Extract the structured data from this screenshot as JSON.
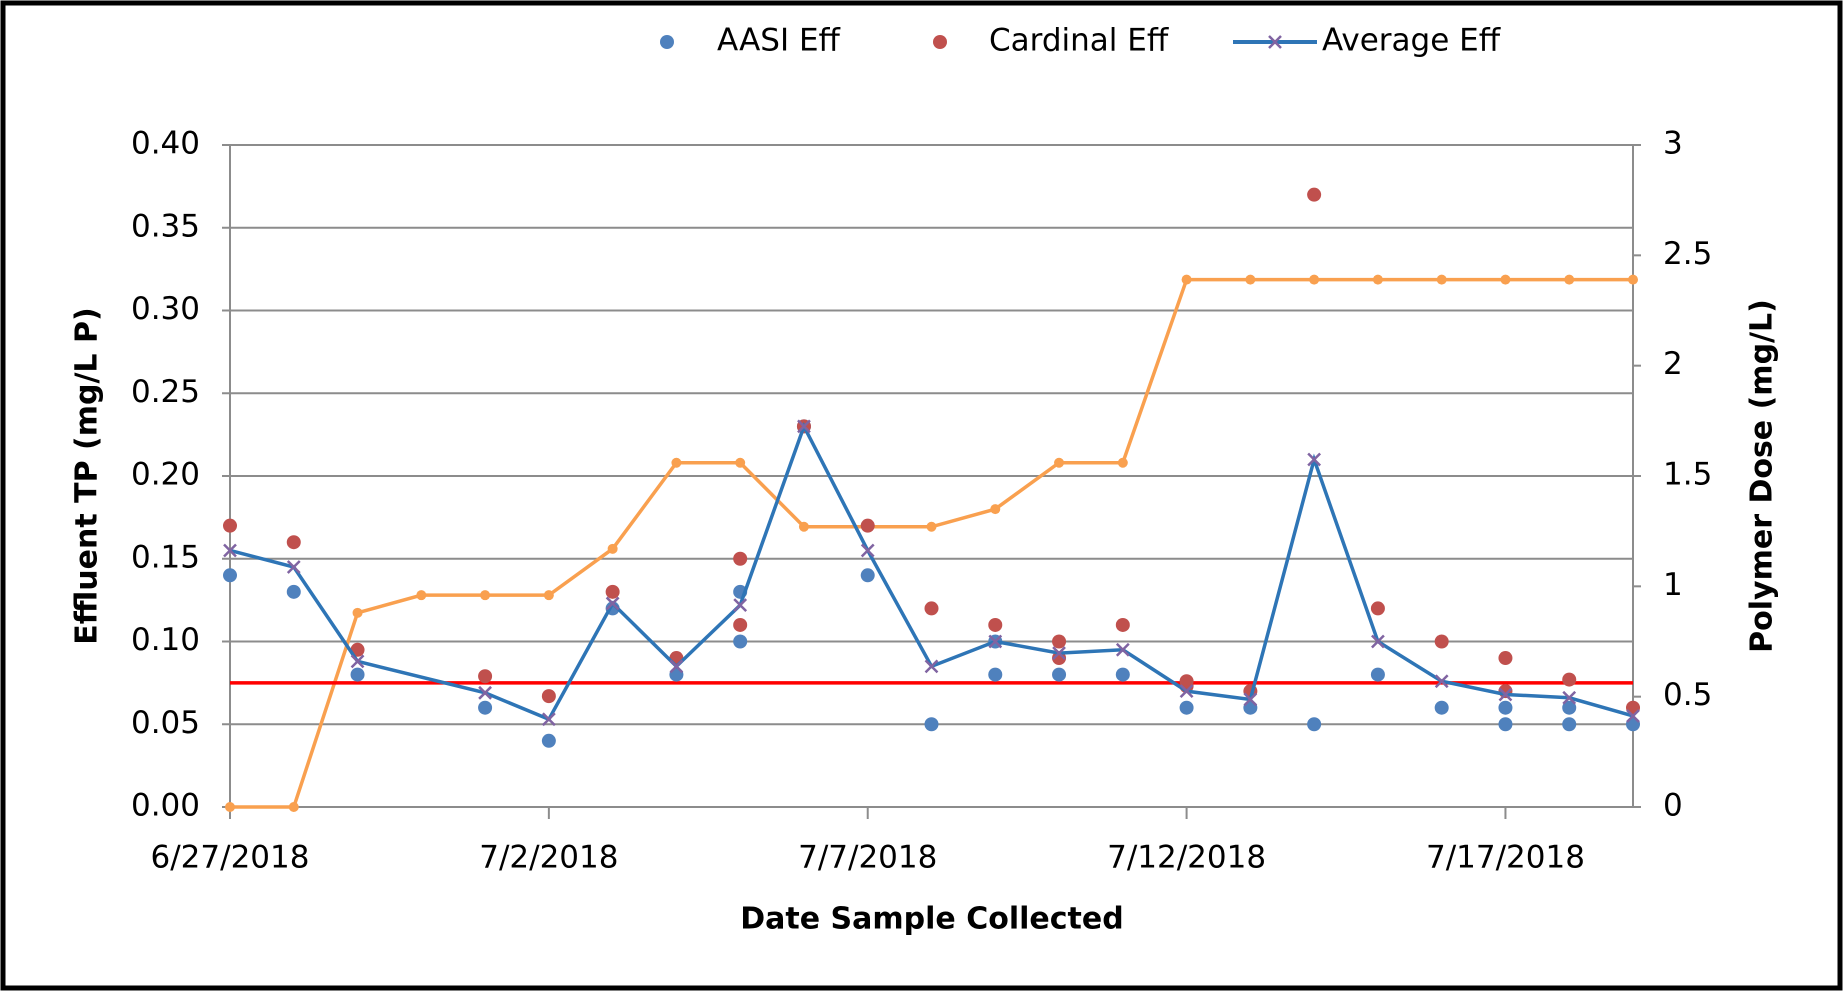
{
  "chart_data": {
    "type": "line",
    "xlabel": "Date Sample Collected",
    "ylabel": "Effluent TP (mg/L P)",
    "y2label": "Polymer Dose (mg/L)",
    "xlim": [
      "6/27/2018",
      "7/19/2018"
    ],
    "xticks": [
      "6/27/2018",
      "7/2/2018",
      "7/7/2018",
      "7/12/2018",
      "7/17/2018"
    ],
    "ylim": [
      0,
      0.4
    ],
    "yticks": [
      {
        "value": 0,
        "label": "0.00"
      },
      {
        "value": 0.05,
        "label": "0.05"
      },
      {
        "value": 0.1,
        "label": "0.10"
      },
      {
        "value": 0.15,
        "label": "0.15"
      },
      {
        "value": 0.2,
        "label": "0.20"
      },
      {
        "value": 0.25,
        "label": "0.25"
      },
      {
        "value": 0.3,
        "label": "0.30"
      },
      {
        "value": 0.35,
        "label": "0.35"
      },
      {
        "value": 0.4,
        "label": "0.40"
      }
    ],
    "y2lim": [
      0,
      3
    ],
    "y2ticks": [
      0,
      0.5,
      1,
      1.5,
      2,
      2.5,
      3
    ],
    "grid": true,
    "legend": "top",
    "reference_line": {
      "value": 0.075,
      "color": "#ff0000"
    },
    "series": [
      {
        "name": "AASI Eff",
        "type": "scatter",
        "color": "#4f81bd",
        "x": [
          "6/27/2018",
          "6/28/2018",
          "6/29/2018",
          "7/1/2018",
          "7/2/2018",
          "7/3/2018",
          "7/4/2018",
          "7/5/2018",
          "7/5/2018",
          "7/6/2018",
          "7/7/2018",
          "7/8/2018",
          "7/9/2018",
          "7/9/2018",
          "7/10/2018",
          "7/11/2018",
          "7/12/2018",
          "7/13/2018",
          "7/14/2018",
          "7/15/2018",
          "7/16/2018",
          "7/17/2018",
          "7/17/2018",
          "7/18/2018",
          "7/18/2018",
          "7/19/2018"
        ],
        "values": [
          0.14,
          0.13,
          0.08,
          0.06,
          0.04,
          0.12,
          0.08,
          0.13,
          0.1,
          0.23,
          0.14,
          0.05,
          0.08,
          0.1,
          0.08,
          0.08,
          0.06,
          0.06,
          0.05,
          0.08,
          0.06,
          0.05,
          0.06,
          0.05,
          0.06,
          0.05
        ]
      },
      {
        "name": "Cardinal Eff",
        "type": "scatter",
        "color": "#c0504d",
        "x": [
          "6/27/2018",
          "6/28/2018",
          "6/29/2018",
          "7/1/2018",
          "7/2/2018",
          "7/3/2018",
          "7/4/2018",
          "7/5/2018",
          "7/5/2018",
          "7/6/2018",
          "7/7/2018",
          "7/8/2018",
          "7/9/2018",
          "7/10/2018",
          "7/10/2018",
          "7/11/2018",
          "7/12/2018",
          "7/12/2018",
          "7/13/2018",
          "7/14/2018",
          "7/15/2018",
          "7/16/2018",
          "7/17/2018",
          "7/17/2018",
          "7/18/2018",
          "7/19/2018"
        ],
        "values": [
          0.17,
          0.16,
          0.095,
          0.079,
          0.067,
          0.13,
          0.09,
          0.15,
          0.11,
          0.23,
          0.17,
          0.12,
          0.11,
          0.1,
          0.09,
          0.11,
          0.076,
          0.073,
          0.07,
          0.37,
          0.12,
          0.1,
          0.09,
          0.07,
          0.077,
          0.06
        ]
      },
      {
        "name": "Average Eff",
        "type": "line",
        "color": "#2e75b6",
        "marker_color": "#8064a2",
        "x": [
          "6/27/2018",
          "6/28/2018",
          "6/29/2018",
          "7/1/2018",
          "7/2/2018",
          "7/3/2018",
          "7/4/2018",
          "7/5/2018",
          "7/6/2018",
          "7/7/2018",
          "7/8/2018",
          "7/9/2018",
          "7/10/2018",
          "7/11/2018",
          "7/12/2018",
          "7/13/2018",
          "7/14/2018",
          "7/15/2018",
          "7/16/2018",
          "7/17/2018",
          "7/18/2018",
          "7/19/2018"
        ],
        "values": [
          0.155,
          0.145,
          0.088,
          0.069,
          0.053,
          0.123,
          0.085,
          0.122,
          0.23,
          0.155,
          0.085,
          0.1,
          0.093,
          0.095,
          0.07,
          0.065,
          0.21,
          0.1,
          0.076,
          0.068,
          0.066,
          0.055
        ]
      },
      {
        "type": "line",
        "axis": "y2",
        "color": "#f9a04f",
        "marker_color": "#f9a04f",
        "x": [
          "6/27/2018",
          "6/28/2018",
          "6/29/2018",
          "6/30/2018",
          "7/1/2018",
          "7/2/2018",
          "7/3/2018",
          "7/4/2018",
          "7/5/2018",
          "7/6/2018",
          "7/7/2018",
          "7/8/2018",
          "7/9/2018",
          "7/10/2018",
          "7/11/2018",
          "7/12/2018",
          "7/13/2018",
          "7/14/2018",
          "7/15/2018",
          "7/16/2018",
          "7/17/2018",
          "7/18/2018",
          "7/19/2018"
        ],
        "values": [
          0,
          0,
          0.88,
          0.96,
          0.96,
          0.96,
          1.17,
          1.56,
          1.56,
          1.27,
          1.27,
          1.27,
          1.35,
          1.56,
          1.56,
          2.39,
          2.39,
          2.39,
          2.39,
          2.39,
          2.39,
          2.39,
          2.39
        ]
      }
    ]
  }
}
